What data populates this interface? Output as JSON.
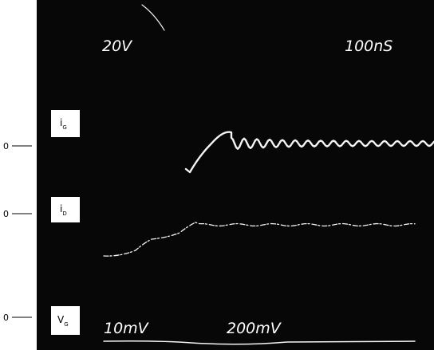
{
  "screen": {
    "top_left": "20V",
    "top_right": "100nS",
    "bottom_left": "10mV",
    "bottom_middle": "200mV"
  },
  "channels": [
    {
      "zero": "0",
      "label": "i",
      "sub": "G"
    },
    {
      "zero": "0",
      "label": "i",
      "sub": "D"
    },
    {
      "zero": "0",
      "label": "V",
      "sub": "G"
    }
  ]
}
